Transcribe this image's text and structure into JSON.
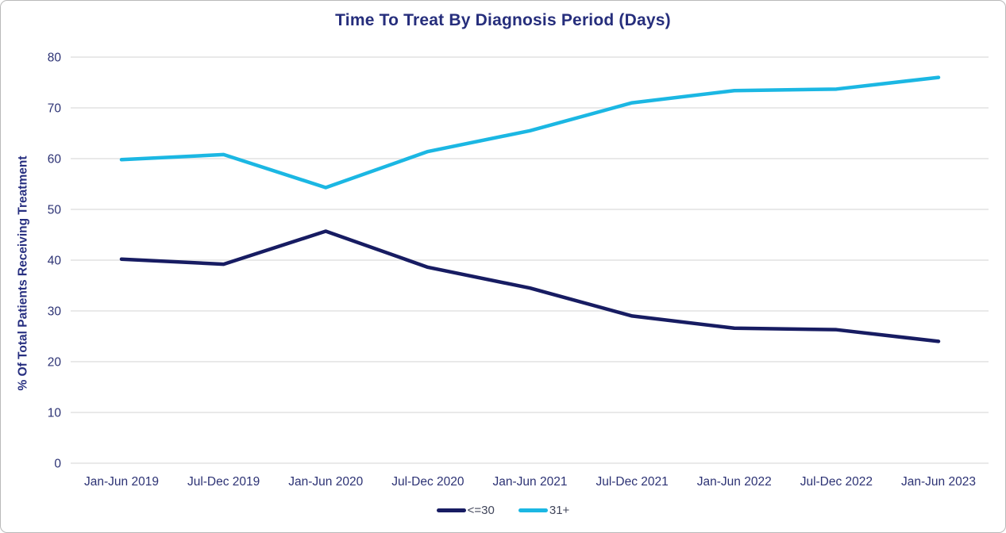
{
  "chart_data": {
    "type": "line",
    "title": "Time To Treat By Diagnosis Period (Days)",
    "xlabel": "",
    "ylabel": "% Of Total Patients Receiving Treatment",
    "categories": [
      "Jan-Jun 2019",
      "Jul-Dec 2019",
      "Jan-Jun 2020",
      "Jul-Dec 2020",
      "Jan-Jun 2021",
      "Jul-Dec 2021",
      "Jan-Jun 2022",
      "Jul-Dec 2022",
      "Jan-Jun 2023"
    ],
    "series": [
      {
        "id": "le30",
        "name": "<=30",
        "color": "#171c62",
        "values": [
          40.2,
          39.2,
          45.7,
          38.6,
          34.5,
          29.0,
          26.6,
          26.3,
          24.0
        ]
      },
      {
        "id": "31plus",
        "name": "31+",
        "color": "#1bb7e3",
        "values": [
          59.8,
          60.8,
          54.3,
          61.4,
          65.5,
          71.0,
          73.4,
          73.7,
          76.0
        ]
      }
    ],
    "y_ticks": [
      0,
      10,
      20,
      30,
      40,
      50,
      60,
      70,
      80
    ],
    "ylim": [
      0,
      80
    ],
    "grid": "horizontal",
    "legend_position": "bottom"
  },
  "styles": {
    "title_color": "#262e7c",
    "axis_title_color": "#272f80",
    "tick_label_color": "#2c3274",
    "legend_label_color": "#40455a",
    "grid_color": "#e6e6e6",
    "background_color": "#ffffff",
    "border_color": "#b9b9b9"
  }
}
